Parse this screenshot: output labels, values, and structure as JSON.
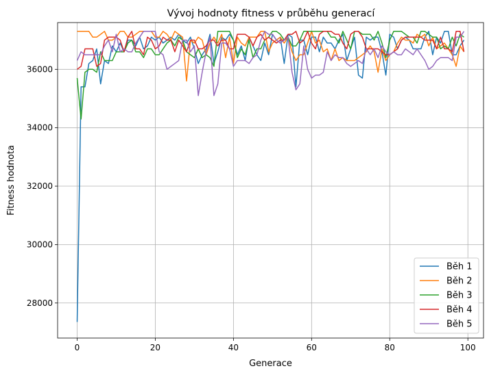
{
  "chart_data": {
    "type": "line",
    "title": "Vývoj hodnoty fitness v průběhu generací",
    "xlabel": "Generace",
    "ylabel": "Fitness hodnota",
    "xlim": [
      -5,
      104
    ],
    "ylim": [
      26800,
      37600
    ],
    "xticks": [
      0,
      20,
      40,
      60,
      80,
      100
    ],
    "yticks": [
      28000,
      30000,
      32000,
      34000,
      36000
    ],
    "grid": true,
    "legend_position": "lower-right",
    "series": [
      {
        "name": "Běh 1",
        "color": "#1f77b4",
        "values": [
          27350,
          35400,
          35400,
          36200,
          36300,
          36700,
          35500,
          36300,
          36200,
          36800,
          36600,
          36900,
          36600,
          37000,
          37000,
          36800,
          37100,
          36700,
          36800,
          37100,
          37000,
          37100,
          36900,
          37000,
          37100,
          37000,
          37200,
          37000,
          36900,
          37100,
          36700,
          36200,
          36500,
          36700,
          37200,
          36200,
          36600,
          37100,
          37000,
          37200,
          37000,
          36500,
          36800,
          36300,
          37100,
          36800,
          36500,
          36300,
          36900,
          36500,
          37200,
          37000,
          37100,
          36200,
          37200,
          37100,
          35400,
          37000,
          37000,
          36500,
          37100,
          37100,
          36600,
          37100,
          36900,
          36900,
          36700,
          37000,
          37200,
          36300,
          36700,
          37100,
          35800,
          35700,
          37100,
          37000,
          37100,
          37100,
          36600,
          35800,
          37200,
          37100,
          36700,
          37000,
          37100,
          37000,
          36700,
          36700,
          36700,
          37100,
          37300,
          36500,
          37100,
          36900,
          37300,
          37300,
          36500,
          36500,
          36800,
          37000
        ]
      },
      {
        "name": "Běh 2",
        "color": "#ff7f0e",
        "values": [
          37300,
          37300,
          37300,
          37300,
          37100,
          37100,
          37200,
          37300,
          37000,
          37000,
          37100,
          37300,
          37300,
          37100,
          37100,
          37200,
          37300,
          37300,
          37300,
          37300,
          37100,
          37100,
          37300,
          37200,
          37000,
          37300,
          37200,
          37100,
          35600,
          37000,
          36900,
          37100,
          37000,
          36500,
          36900,
          37100,
          36900,
          37200,
          36400,
          37100,
          36200,
          37100,
          36900,
          36800,
          37100,
          37100,
          37100,
          37300,
          37300,
          36600,
          36900,
          37000,
          37100,
          36900,
          37100,
          36600,
          36300,
          36500,
          36500,
          36900,
          37300,
          36900,
          37000,
          36600,
          36700,
          36300,
          36700,
          36300,
          36400,
          36300,
          36300,
          36300,
          36400,
          36500,
          36600,
          36800,
          36600,
          35900,
          36700,
          36300,
          36500,
          36600,
          36900,
          37100,
          37000,
          37000,
          36900,
          37200,
          37100,
          37200,
          36800,
          37100,
          36700,
          36800,
          36900,
          36700,
          36500,
          36100,
          36800,
          36600
        ]
      },
      {
        "name": "Běh 3",
        "color": "#2ca02c",
        "values": [
          35700,
          34300,
          35900,
          36000,
          36000,
          35900,
          36600,
          36300,
          36300,
          36300,
          36600,
          36600,
          36600,
          36900,
          37000,
          36600,
          36600,
          36400,
          36700,
          36700,
          36500,
          36500,
          36700,
          36900,
          37000,
          36800,
          37100,
          37000,
          36600,
          36500,
          36400,
          36700,
          36400,
          36500,
          36400,
          36100,
          37300,
          37300,
          37300,
          37300,
          37000,
          36400,
          36700,
          36500,
          37000,
          36400,
          36700,
          36700,
          37000,
          37100,
          37300,
          37300,
          37200,
          37000,
          37100,
          36800,
          36800,
          37000,
          37300,
          37300,
          37300,
          37300,
          37300,
          37300,
          37300,
          37100,
          37100,
          36900,
          37300,
          37000,
          36700,
          37300,
          37300,
          37200,
          37200,
          37200,
          37000,
          37300,
          36900,
          36400,
          37000,
          37300,
          37300,
          37300,
          37200,
          37100,
          37100,
          36900,
          37300,
          37300,
          37200,
          37100,
          37100,
          36700,
          36800,
          36700,
          37100,
          36800,
          37200,
          37100
        ]
      },
      {
        "name": "Běh 4",
        "color": "#d62728",
        "values": [
          36000,
          36100,
          36700,
          36700,
          36700,
          36100,
          36200,
          37000,
          37100,
          37100,
          37100,
          37000,
          36600,
          37100,
          37300,
          36700,
          36700,
          36500,
          37100,
          37000,
          36700,
          36800,
          37100,
          37000,
          37000,
          36600,
          37000,
          36800,
          36600,
          37000,
          37000,
          36700,
          36700,
          36800,
          37000,
          37000,
          36800,
          37000,
          37000,
          36700,
          36700,
          37200,
          37200,
          37200,
          37100,
          36800,
          37100,
          37200,
          37000,
          37100,
          37000,
          36900,
          37000,
          37000,
          37200,
          37200,
          37300,
          36900,
          37000,
          37300,
          36900,
          36700,
          37200,
          37300,
          37300,
          37300,
          37200,
          37200,
          36900,
          36700,
          37200,
          37300,
          37300,
          37100,
          36700,
          36700,
          36700,
          36700,
          36600,
          36500,
          36500,
          36600,
          36700,
          37000,
          37100,
          37100,
          37100,
          37100,
          37100,
          37000,
          37000,
          37000,
          36700,
          37100,
          36700,
          36700,
          36600,
          37300,
          37300,
          36600
        ]
      },
      {
        "name": "Běh 5",
        "color": "#9467bd",
        "values": [
          36300,
          36600,
          36500,
          36500,
          36500,
          36500,
          36500,
          36800,
          37000,
          36600,
          37200,
          36600,
          36700,
          36600,
          36600,
          36900,
          37100,
          37300,
          37300,
          37300,
          37300,
          36600,
          36500,
          36000,
          36100,
          36200,
          36300,
          37000,
          37000,
          36600,
          36800,
          35100,
          35900,
          36600,
          37100,
          35100,
          35500,
          36900,
          36900,
          36700,
          36100,
          36300,
          36300,
          36300,
          36200,
          36400,
          36500,
          37000,
          37300,
          37200,
          37200,
          37000,
          36900,
          37000,
          37100,
          35900,
          35300,
          35500,
          36800,
          36000,
          35700,
          35800,
          35800,
          35900,
          36600,
          36300,
          36500,
          36400,
          36400,
          36200,
          36100,
          36200,
          36300,
          36200,
          36700,
          36500,
          36700,
          36400,
          36800,
          36600,
          36500,
          36600,
          36500,
          36500,
          36700,
          36600,
          36500,
          36700,
          36500,
          36300,
          36000,
          36100,
          36300,
          36400,
          36400,
          36400,
          36300,
          37100,
          37100,
          37300
        ]
      }
    ]
  }
}
